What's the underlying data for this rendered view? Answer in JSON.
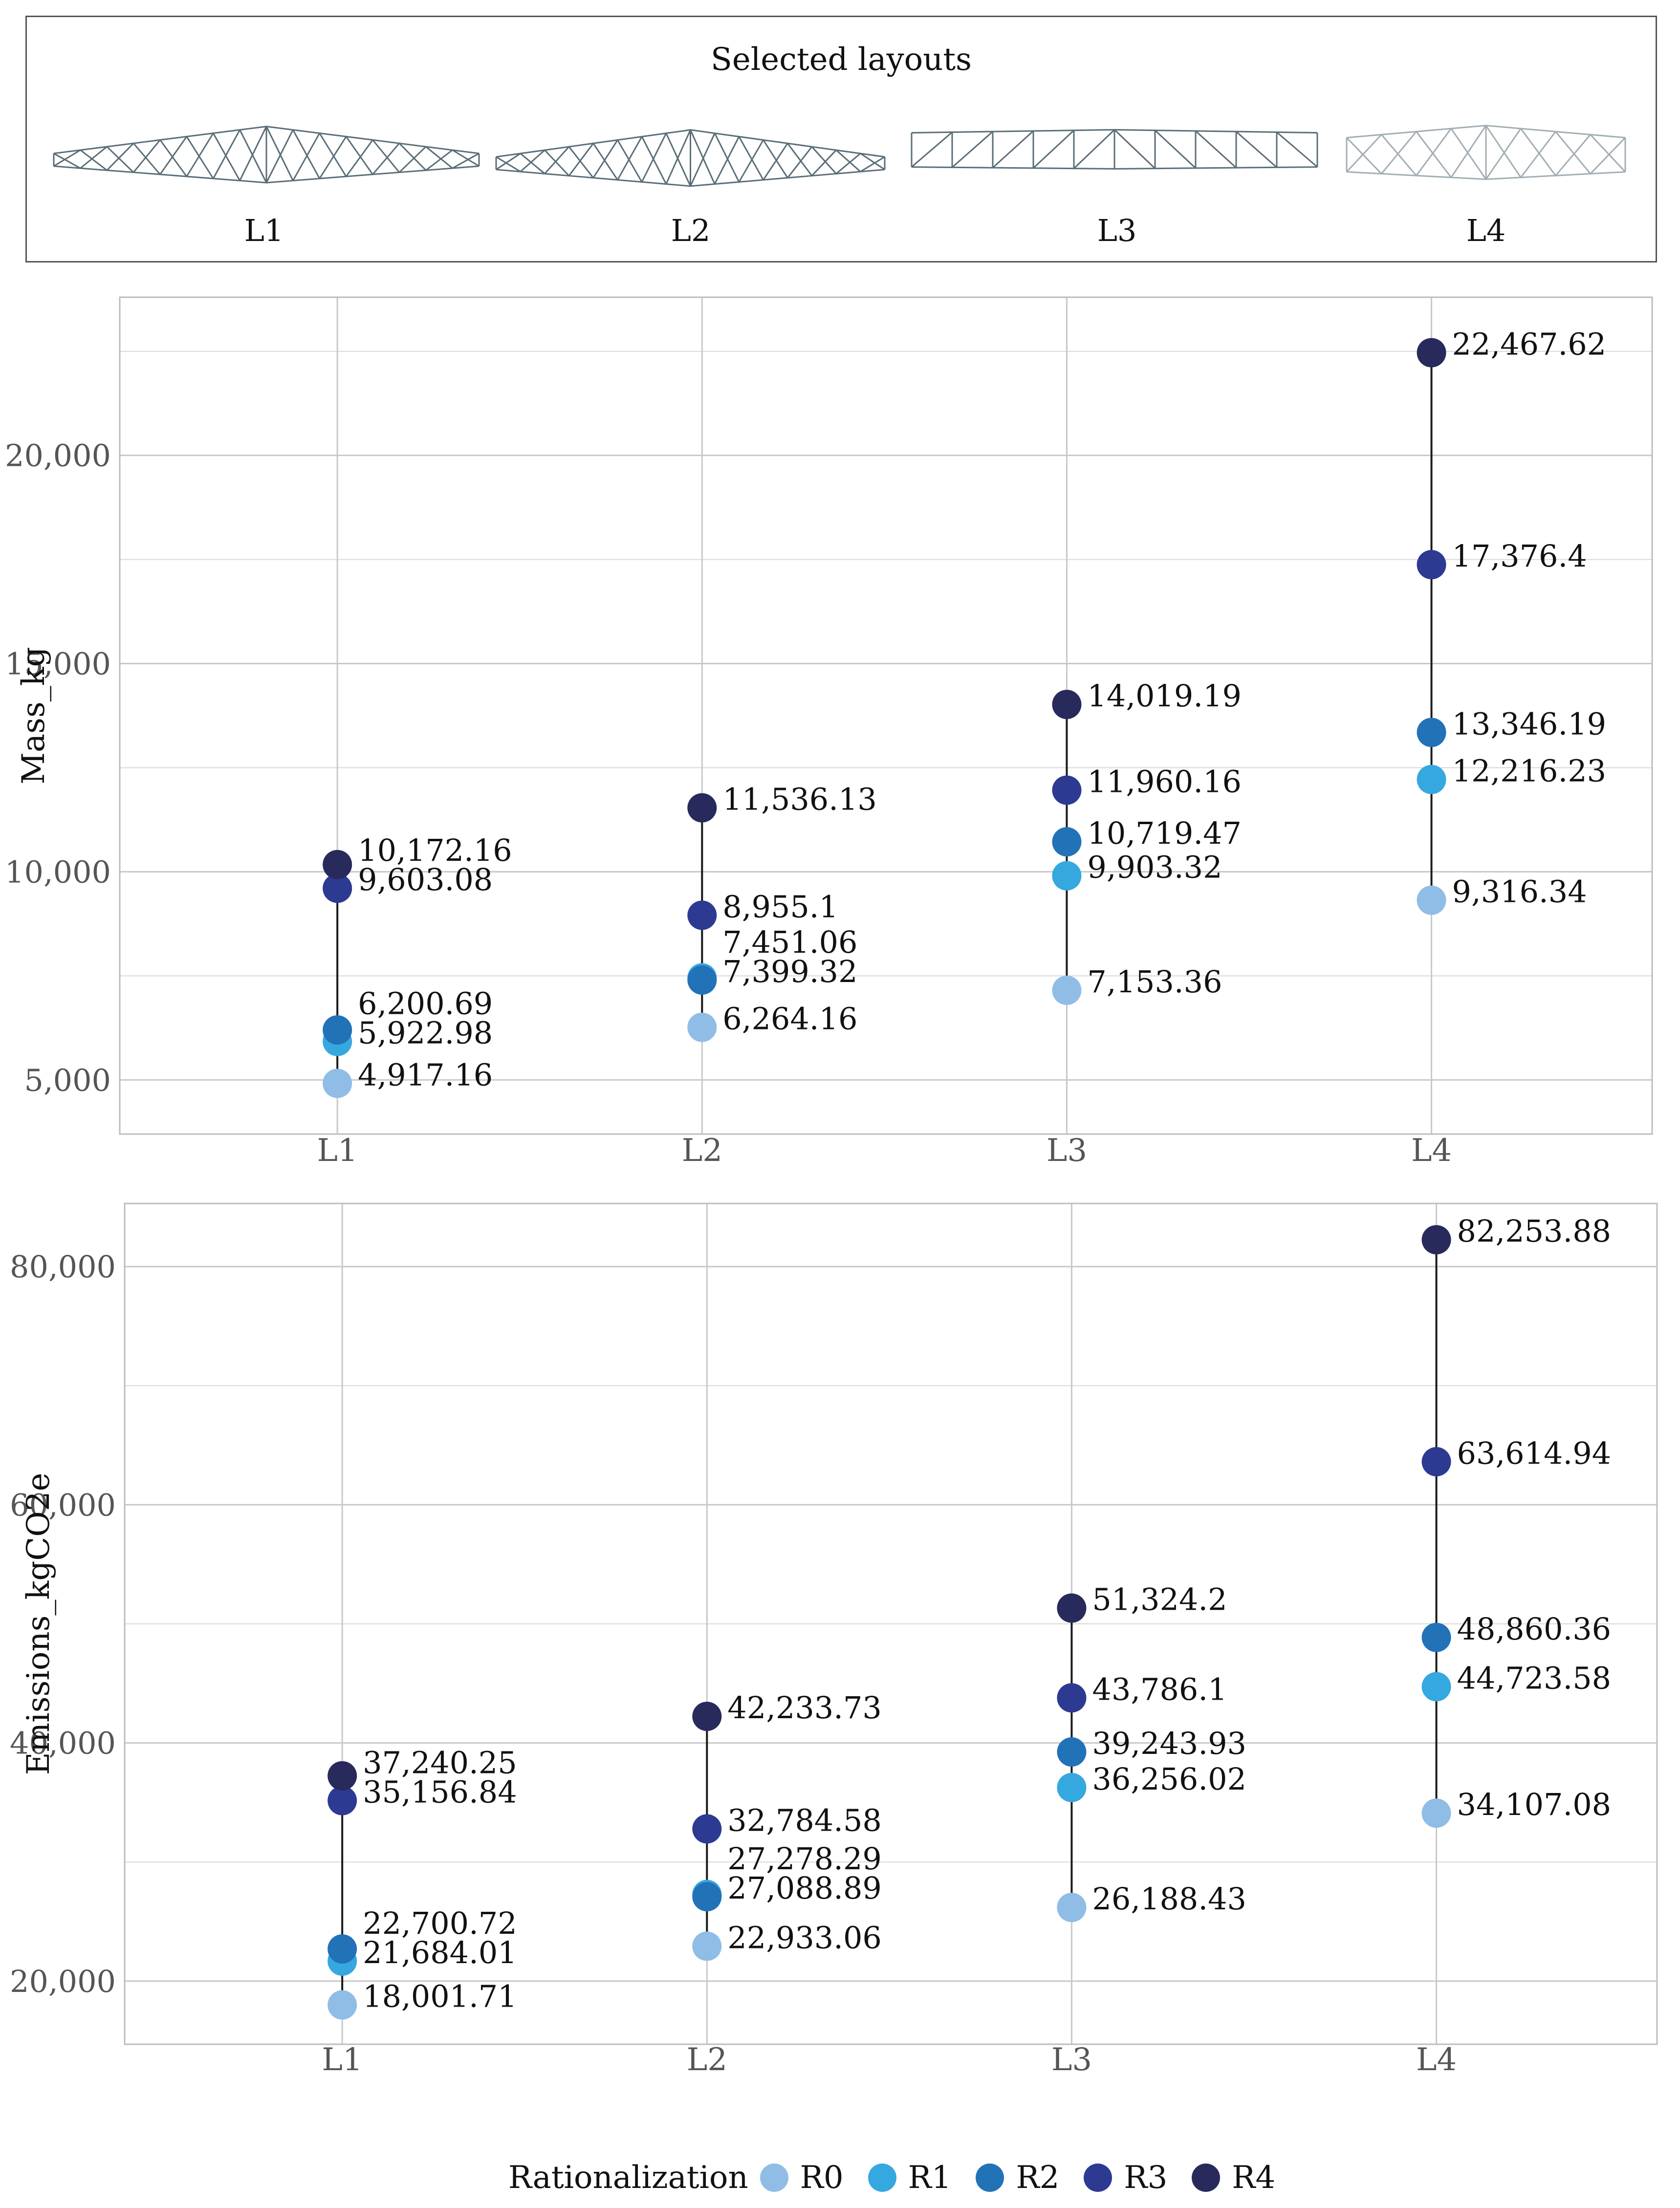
{
  "header": {
    "title": "Selected layouts",
    "layouts": [
      "L1",
      "L2",
      "L3",
      "L4"
    ]
  },
  "legend": {
    "title": "Rationalization",
    "items": [
      {
        "label": "R0",
        "color": "#8fbde6"
      },
      {
        "label": "R1",
        "color": "#35a8e0"
      },
      {
        "label": "R2",
        "color": "#2272b8"
      },
      {
        "label": "R3",
        "color": "#2d3a92"
      },
      {
        "label": "R4",
        "color": "#282a5c"
      }
    ]
  },
  "chart_data": [
    {
      "type": "scatter",
      "title": "",
      "xlabel": "",
      "ylabel": "Mass_kg",
      "categories": [
        "L1",
        "L2",
        "L3",
        "L4"
      ],
      "ylim": [
        3700,
        23800
      ],
      "yticks": [
        5000,
        10000,
        15000,
        20000
      ],
      "ytick_labels": [
        "5,000",
        "10,000",
        "15,000",
        "20,000"
      ],
      "grid": true,
      "legend_position": "bottom",
      "series": [
        {
          "name": "R0",
          "values": [
            4917.16,
            6264.16,
            7153.36,
            9316.34
          ],
          "labels": [
            "4,917.16",
            "6,264.16",
            "7,153.36",
            "9,316.34"
          ]
        },
        {
          "name": "R1",
          "values": [
            5922.98,
            7451.06,
            9903.32,
            12216.23
          ],
          "labels": [
            "5,922.98",
            "7,451.06",
            "9,903.32",
            "12,216.23"
          ]
        },
        {
          "name": "R2",
          "values": [
            6200.69,
            7399.32,
            10719.47,
            13346.19
          ],
          "labels": [
            "6,200.69",
            "7,399.32",
            "10,719.47",
            "13,346.19"
          ]
        },
        {
          "name": "R3",
          "values": [
            9603.08,
            8955.1,
            11960.16,
            17376.4
          ],
          "labels": [
            "9,603.08",
            "8,955.1",
            "11,960.16",
            "17,376.4"
          ]
        },
        {
          "name": "R4",
          "values": [
            10172.16,
            11536.13,
            14019.19,
            22467.62
          ],
          "labels": [
            "10,172.16",
            "11,536.13",
            "14,019.19",
            "22,467.62"
          ]
        }
      ]
    },
    {
      "type": "scatter",
      "title": "",
      "xlabel": "",
      "ylabel": "Emissions_kgCO2e",
      "categories": [
        "L1",
        "L2",
        "L3",
        "L4"
      ],
      "ylim": [
        14700,
        85300
      ],
      "yticks": [
        20000,
        40000,
        60000,
        80000
      ],
      "ytick_labels": [
        "20,000",
        "40,000",
        "60,000",
        "80,000"
      ],
      "grid": true,
      "legend_position": "bottom",
      "series": [
        {
          "name": "R0",
          "values": [
            18001.71,
            22933.06,
            26188.43,
            34107.08
          ],
          "labels": [
            "18,001.71",
            "22,933.06",
            "26,188.43",
            "34,107.08"
          ]
        },
        {
          "name": "R1",
          "values": [
            21684.01,
            27278.29,
            36256.02,
            44723.58
          ],
          "labels": [
            "21,684.01",
            "27,278.29",
            "36,256.02",
            "44,723.58"
          ]
        },
        {
          "name": "R2",
          "values": [
            22700.72,
            27088.89,
            39243.93,
            48860.36
          ],
          "labels": [
            "22,700.72",
            "27,088.89",
            "39,243.93",
            "48,860.36"
          ]
        },
        {
          "name": "R3",
          "values": [
            35156.84,
            32784.58,
            43786.1,
            63614.94
          ],
          "labels": [
            "35,156.84",
            "32,784.58",
            "43,786.1",
            "63,614.94"
          ]
        },
        {
          "name": "R4",
          "values": [
            37240.25,
            42233.73,
            51324.2,
            82253.88
          ],
          "labels": [
            "37,240.25",
            "42,233.73",
            "51,324.2",
            "82,253.88"
          ]
        }
      ]
    }
  ]
}
